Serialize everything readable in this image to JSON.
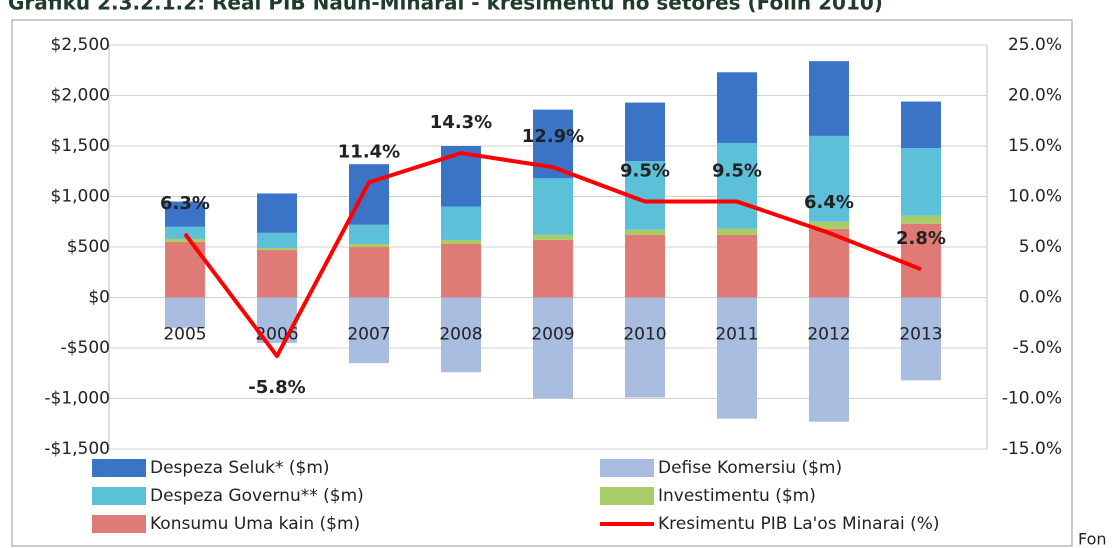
{
  "chart_data": {
    "type": "bar",
    "title": "Grafiku 2.3.2.1.2: Real PIB Naun-Minarai - kresimentu no setores (Folin 2010)",
    "source": "Fon",
    "stacked": true,
    "grid": true,
    "categories": [
      "2005",
      "2006",
      "2007",
      "2008",
      "2009",
      "2010",
      "2011",
      "2012",
      "2013"
    ],
    "series": [
      {
        "name": "Konsumu Uma kain ($m)",
        "color": "#e07a77",
        "values": [
          550,
          470,
          500,
          530,
          570,
          620,
          620,
          680,
          730
        ]
      },
      {
        "name": "Investimentu ($m)",
        "color": "#a8cc66",
        "values": [
          30,
          20,
          30,
          40,
          50,
          50,
          60,
          70,
          80
        ]
      },
      {
        "name": "Despeza Governu** ($m)",
        "color": "#5bc0d8",
        "values": [
          120,
          150,
          190,
          330,
          560,
          680,
          850,
          850,
          670
        ]
      },
      {
        "name": "Despeza Seluk* ($m)",
        "color": "#3b74c7",
        "values": [
          250,
          390,
          600,
          600,
          680,
          580,
          700,
          740,
          460
        ]
      },
      {
        "name": "Defise Komersiu ($m)",
        "color": "#a9bde0",
        "values": [
          -300,
          -450,
          -650,
          -740,
          -1000,
          -990,
          -1200,
          -1230,
          -820
        ]
      },
      {
        "name": "Kresimentu PIB La'os Minarai (%)",
        "color": "#ff0000",
        "type": "line",
        "axis": "y2",
        "values": [
          6.3,
          -5.8,
          11.4,
          14.3,
          12.9,
          9.5,
          9.5,
          6.4,
          2.8
        ],
        "value_labels": [
          "6.3%",
          "-5.8%",
          "11.4%",
          "14.3%",
          "12.9%",
          "9.5%",
          "9.5%",
          "6.4%",
          "2.8%"
        ]
      }
    ],
    "ylim": [
      -1500,
      2500
    ],
    "yticks": [
      {
        "value": -1500,
        "label": "-$1,500"
      },
      {
        "value": -1000,
        "label": "-$1,000"
      },
      {
        "value": -500,
        "label": "-$500"
      },
      {
        "value": 0,
        "label": "$0"
      },
      {
        "value": 500,
        "label": "$500"
      },
      {
        "value": 1000,
        "label": "$1,000"
      },
      {
        "value": 1500,
        "label": "$1,500"
      },
      {
        "value": 2000,
        "label": "$2,000"
      },
      {
        "value": 2500,
        "label": "$2,500"
      }
    ],
    "y2lim": [
      -15,
      25
    ],
    "y2ticks": [
      {
        "value": -15,
        "label": "-15.0%"
      },
      {
        "value": -10,
        "label": "-10.0%"
      },
      {
        "value": -5,
        "label": "-5.0%"
      },
      {
        "value": 0,
        "label": "0.0%"
      },
      {
        "value": 5,
        "label": "5.0%"
      },
      {
        "value": 10,
        "label": "10.0%"
      },
      {
        "value": 15,
        "label": "15.0%"
      },
      {
        "value": 20,
        "label": "20.0%"
      },
      {
        "value": 25,
        "label": "25.0%"
      }
    ]
  }
}
